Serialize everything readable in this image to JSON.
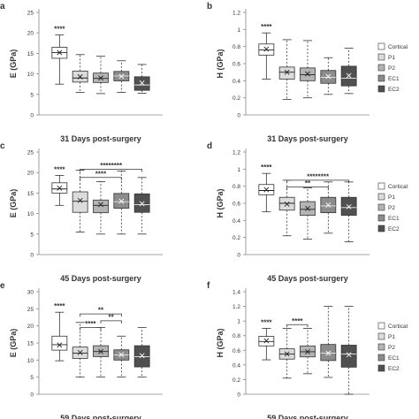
{
  "legend": {
    "entries": [
      "Cortical",
      "P1",
      "P2",
      "EC1",
      "EC2"
    ],
    "colors": [
      "#ffffff",
      "#dcdcdc",
      "#b4b4b4",
      "#8c8c8c",
      "#505050"
    ]
  },
  "chart_data": [
    {
      "panel": "a",
      "type": "box",
      "title": "31 Days post-surgery",
      "ylabel": "E (GPa)",
      "ylim": [
        0,
        25
      ],
      "yticks": [
        0,
        5,
        10,
        15,
        20,
        25
      ],
      "boxes": [
        {
          "min": 7.5,
          "q1": 13.8,
          "median": 15.2,
          "q3": 16.5,
          "max": 19.5,
          "mean": 15.2
        },
        {
          "min": 5.5,
          "q1": 8.0,
          "median": 9.0,
          "q3": 10.7,
          "max": 14.7,
          "mean": 9.3
        },
        {
          "min": 5.2,
          "q1": 7.9,
          "median": 8.9,
          "q3": 10.2,
          "max": 14.3,
          "mean": 9.0
        },
        {
          "min": 5.5,
          "q1": 8.3,
          "median": 9.5,
          "q3": 10.6,
          "max": 13.2,
          "mean": 9.4
        },
        {
          "min": 5.3,
          "q1": 6.0,
          "median": 7.3,
          "q3": 9.3,
          "max": 12.3,
          "mean": 7.8
        }
      ],
      "sig": [
        {
          "label": "****",
          "box": 0
        }
      ],
      "legend": false
    },
    {
      "panel": "b",
      "type": "box",
      "title": "31 Days post-surgery",
      "ylabel": "H (GPa)",
      "ylim": [
        0,
        1.2
      ],
      "yticks": [
        0,
        0.2,
        0.4,
        0.6,
        0.8,
        1,
        1.2
      ],
      "boxes": [
        {
          "min": 0.42,
          "q1": 0.7,
          "median": 0.76,
          "q3": 0.83,
          "max": 0.96,
          "mean": 0.77
        },
        {
          "min": 0.18,
          "q1": 0.42,
          "median": 0.5,
          "q3": 0.56,
          "max": 0.88,
          "mean": 0.5
        },
        {
          "min": 0.2,
          "q1": 0.4,
          "median": 0.47,
          "q3": 0.55,
          "max": 0.87,
          "mean": 0.48
        },
        {
          "min": 0.24,
          "q1": 0.37,
          "median": 0.44,
          "q3": 0.52,
          "max": 0.67,
          "mean": 0.45
        },
        {
          "min": 0.25,
          "q1": 0.34,
          "median": 0.43,
          "q3": 0.57,
          "max": 0.78,
          "mean": 0.46
        }
      ],
      "sig": [
        {
          "label": "****",
          "box": 0
        }
      ],
      "legend": true
    },
    {
      "panel": "c",
      "type": "box",
      "title": "45 Days post-surgery",
      "ylabel": "E (GPa)",
      "ylim": [
        0,
        25
      ],
      "yticks": [
        0,
        5,
        10,
        15,
        20,
        25
      ],
      "boxes": [
        {
          "min": 12.0,
          "q1": 15.0,
          "median": 16.0,
          "q3": 17.5,
          "max": 19.3,
          "mean": 16.2
        },
        {
          "min": 5.5,
          "q1": 10.3,
          "median": 13.0,
          "q3": 15.3,
          "max": 20.6,
          "mean": 13.2
        },
        {
          "min": 5.0,
          "q1": 10.2,
          "median": 12.0,
          "q3": 13.3,
          "max": 17.8,
          "mean": 12.2
        },
        {
          "min": 5.0,
          "q1": 11.3,
          "median": 12.9,
          "q3": 14.9,
          "max": 20.4,
          "mean": 13.0
        },
        {
          "min": 5.0,
          "q1": 10.3,
          "median": 12.2,
          "q3": 14.8,
          "max": 18.8,
          "mean": 12.4
        }
      ],
      "sig": [
        {
          "label": "****",
          "box": 0
        }
      ],
      "brackets": [
        {
          "from": 1,
          "to": 4,
          "level": 20.8,
          "label": "********"
        },
        {
          "from": 1,
          "to": 3,
          "level": 18.8,
          "label": "****"
        }
      ],
      "legend": false
    },
    {
      "panel": "d",
      "type": "box",
      "title": "45 Days post-surgery",
      "ylabel": "H (GPa)",
      "ylim": [
        0,
        1.2
      ],
      "yticks": [
        0,
        0.2,
        0.4,
        0.6,
        0.8,
        1,
        1.2
      ],
      "boxes": [
        {
          "min": 0.5,
          "q1": 0.7,
          "median": 0.75,
          "q3": 0.82,
          "max": 0.95,
          "mean": 0.76
        },
        {
          "min": 0.22,
          "q1": 0.52,
          "median": 0.6,
          "q3": 0.67,
          "max": 0.87,
          "mean": 0.59
        },
        {
          "min": 0.18,
          "q1": 0.46,
          "median": 0.53,
          "q3": 0.62,
          "max": 0.78,
          "mean": 0.54
        },
        {
          "min": 0.25,
          "q1": 0.49,
          "median": 0.57,
          "q3": 0.67,
          "max": 0.85,
          "mean": 0.58
        },
        {
          "min": 0.15,
          "q1": 0.46,
          "median": 0.55,
          "q3": 0.67,
          "max": 0.85,
          "mean": 0.56
        }
      ],
      "sig": [
        {
          "label": "****",
          "box": 0
        }
      ],
      "brackets": [
        {
          "from": 1,
          "to": 4,
          "level": 0.87,
          "label": "********"
        },
        {
          "from": 1,
          "to": 3,
          "level": 0.79,
          "label": "**"
        }
      ],
      "legend": true
    },
    {
      "panel": "e",
      "type": "box",
      "title": "59 Days post-surgery",
      "ylabel": "E (GPa)",
      "ylim": [
        0,
        30
      ],
      "yticks": [
        0,
        5,
        10,
        15,
        20,
        25,
        30
      ],
      "boxes": [
        {
          "min": 9.8,
          "q1": 12.9,
          "median": 14.5,
          "q3": 17.0,
          "max": 24.0,
          "mean": 14.4
        },
        {
          "min": 5.0,
          "q1": 10.5,
          "median": 12.0,
          "q3": 13.8,
          "max": 21.0,
          "mean": 12.2
        },
        {
          "min": 5.0,
          "q1": 11.0,
          "median": 12.5,
          "q3": 14.2,
          "max": 19.5,
          "mean": 12.5
        },
        {
          "min": 5.0,
          "q1": 10.0,
          "median": 11.5,
          "q3": 13.0,
          "max": 17.0,
          "mean": 11.6
        },
        {
          "min": 5.0,
          "q1": 8.0,
          "median": 11.0,
          "q3": 14.2,
          "max": 19.5,
          "mean": 11.3
        }
      ],
      "sig": [
        {
          "label": "****",
          "box": 0
        }
      ],
      "brackets": [
        {
          "from": 1,
          "to": 3,
          "level": 23.5,
          "label": "**"
        },
        {
          "from": 2,
          "to": 3,
          "level": 21.5,
          "label": "**"
        },
        {
          "from": 1,
          "to": 2,
          "level": 19.5,
          "label": "****"
        }
      ],
      "legend": false
    },
    {
      "panel": "f",
      "type": "box",
      "title": "59 Days post-surgery",
      "ylabel": "H (GPa)",
      "ylim": [
        0,
        1.4
      ],
      "yticks": [
        0,
        0.2,
        0.4,
        0.6,
        0.8,
        1,
        1.2,
        1.4
      ],
      "boxes": [
        {
          "min": 0.47,
          "q1": 0.66,
          "median": 0.72,
          "q3": 0.79,
          "max": 0.9,
          "mean": 0.73
        },
        {
          "min": 0.22,
          "q1": 0.48,
          "median": 0.55,
          "q3": 0.62,
          "max": 0.9,
          "mean": 0.55
        },
        {
          "min": 0.28,
          "q1": 0.51,
          "median": 0.58,
          "q3": 0.66,
          "max": 0.9,
          "mean": 0.58
        },
        {
          "min": 0.23,
          "q1": 0.46,
          "median": 0.56,
          "q3": 0.68,
          "max": 1.2,
          "mean": 0.56
        },
        {
          "min": 0.0,
          "q1": 0.37,
          "median": 0.55,
          "q3": 0.67,
          "max": 1.2,
          "mean": 0.54
        }
      ],
      "sig": [
        {
          "label": "****",
          "box": 0
        }
      ],
      "brackets": [
        {
          "from": 1,
          "to": 2,
          "level": 0.95,
          "label": "****"
        }
      ],
      "legend": true
    }
  ]
}
